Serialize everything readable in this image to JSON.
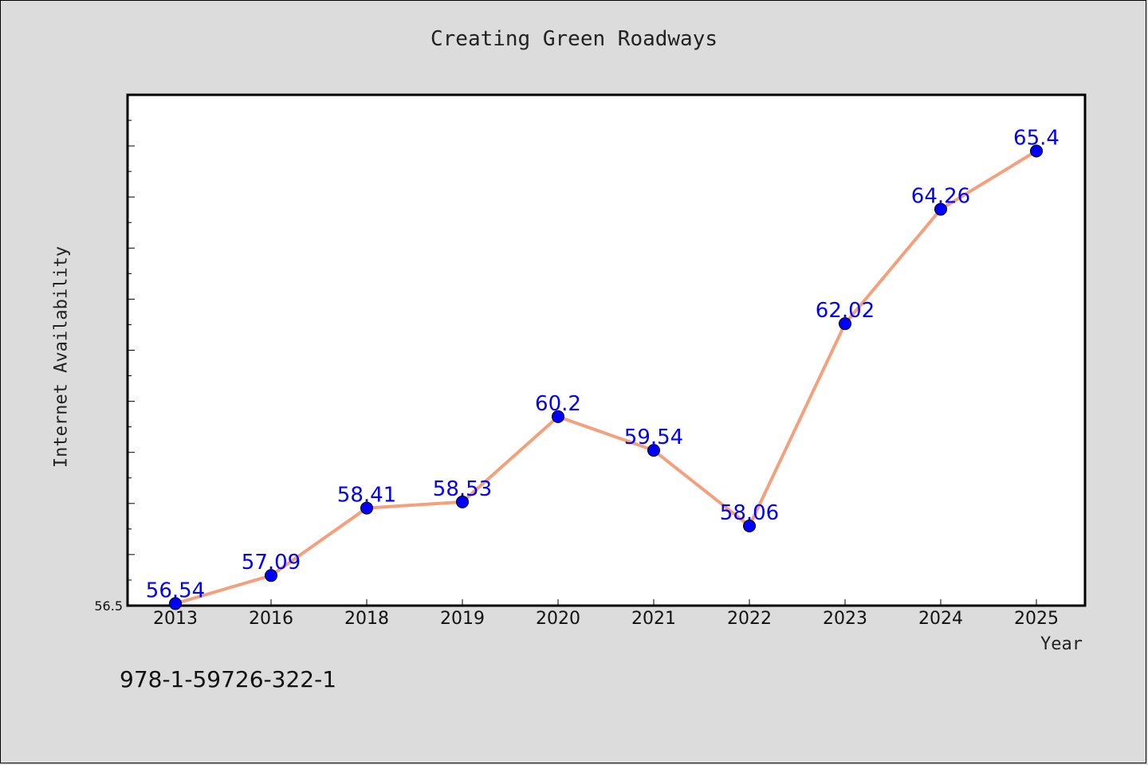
{
  "page": {
    "title": "Creating Green Roadways",
    "footer_code": "978-1-59726-322-1"
  },
  "chart_data": {
    "type": "line",
    "title": "Creating Green Roadways",
    "xlabel": "Year",
    "ylabel": "Internet Availability",
    "categories": [
      "2013",
      "2016",
      "2018",
      "2019",
      "2020",
      "2021",
      "2022",
      "2023",
      "2024",
      "2025"
    ],
    "series": [
      {
        "values": [
          56.54,
          57.09,
          58.41,
          58.53,
          60.2,
          59.54,
          58.06,
          62.02,
          64.26,
          65.4
        ]
      }
    ],
    "data_labels": [
      "56.54",
      "57.09",
      "58.41",
      "58.53",
      "60.2",
      "59.54",
      "58.06",
      "62.02",
      "64.26",
      "65.4"
    ],
    "y_tick_labels": [
      "56.5"
    ],
    "ylim": [
      56.5,
      66.5
    ],
    "grid": false,
    "legend": "none",
    "colors": {
      "line": "#f4a07c",
      "marker": "#0000ff",
      "marker_edge": "#000000",
      "label": "#0000ff",
      "plot_background": "#ffffff",
      "page_background": "#dcdcdc"
    }
  }
}
